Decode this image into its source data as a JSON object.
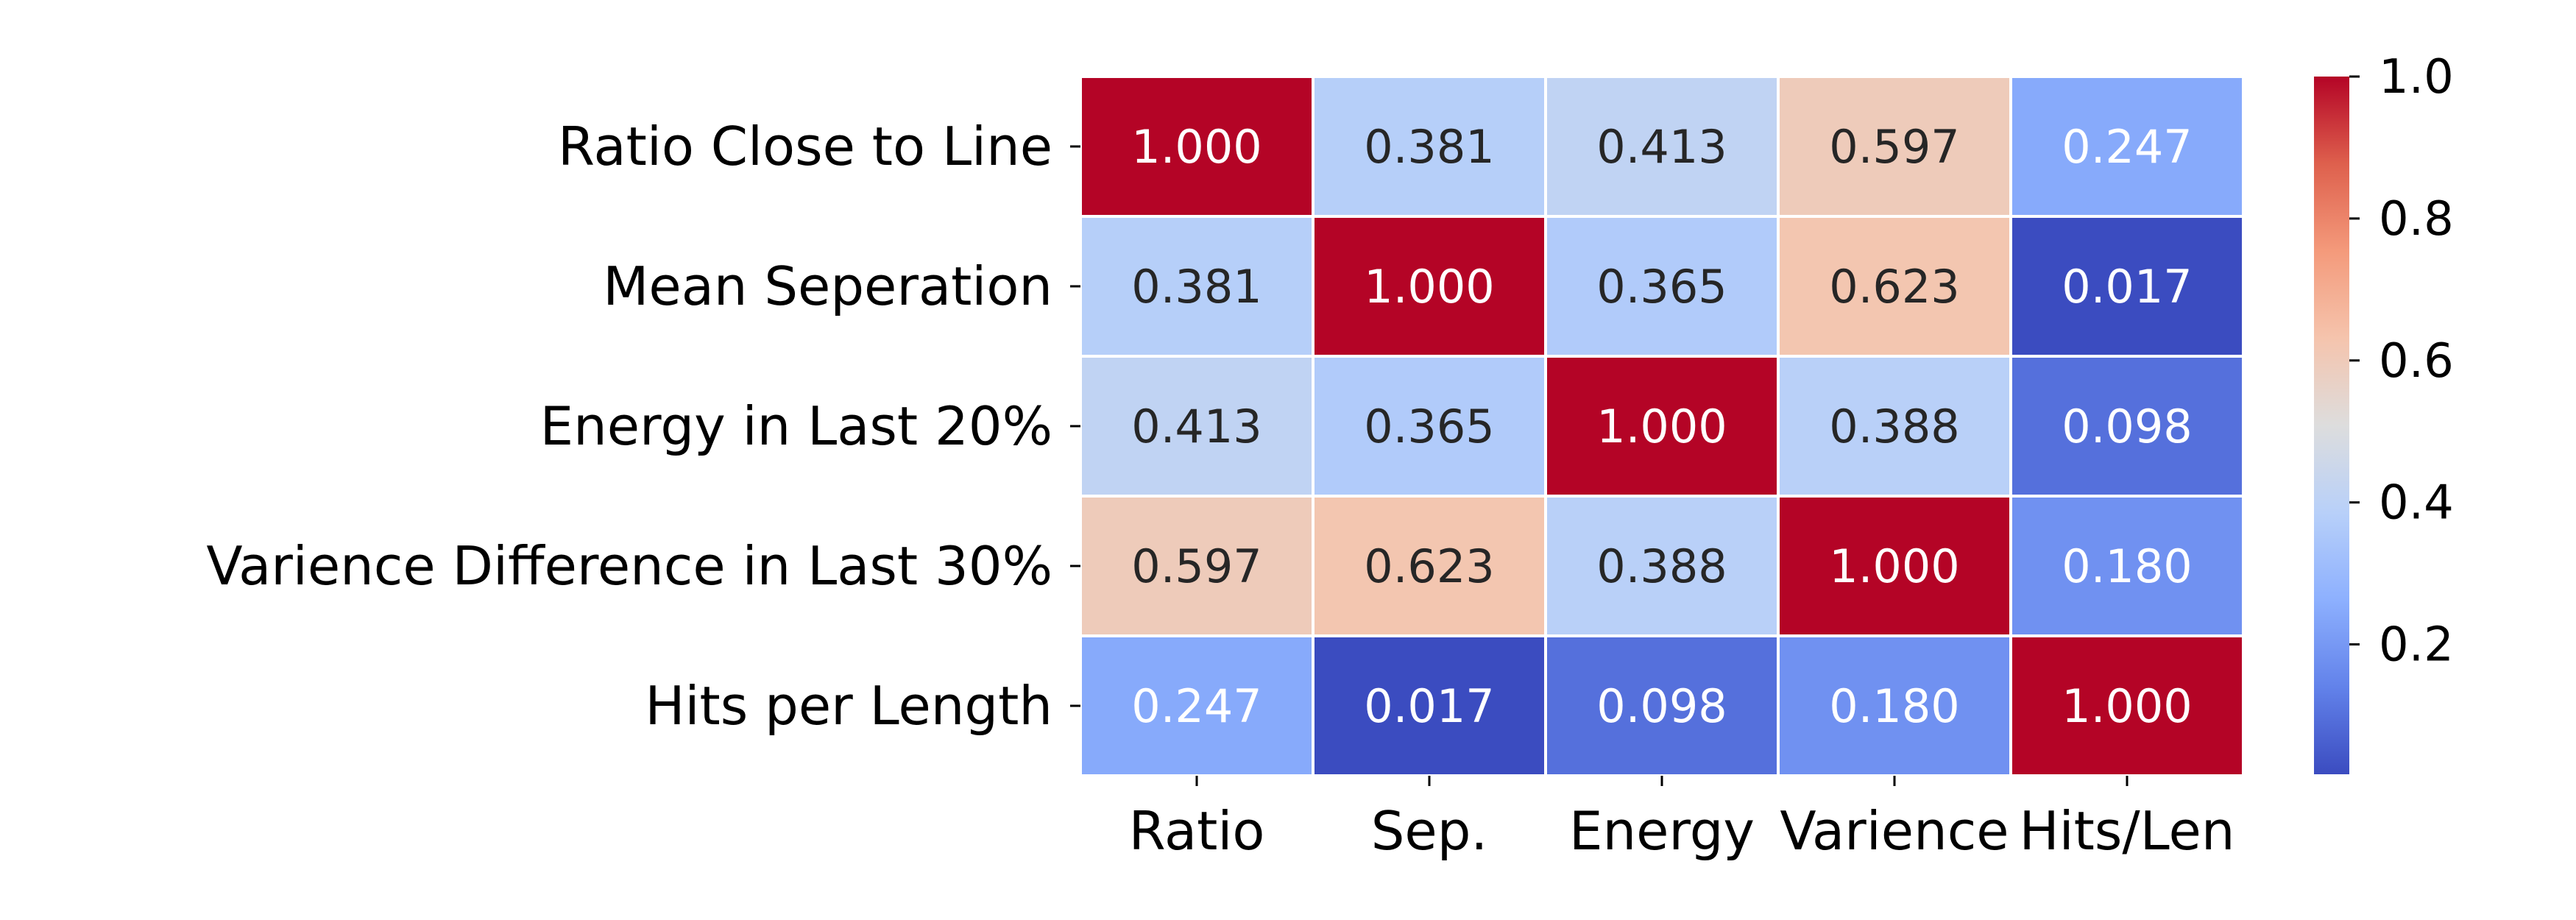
{
  "chart_data": {
    "type": "heatmap",
    "title": "",
    "xlabel": "",
    "ylabel": "",
    "row_labels": [
      "Ratio Close to Line",
      "Mean Seperation",
      "Energy in Last 20%",
      "Varience Difference in Last 30%",
      "Hits per Length"
    ],
    "col_labels": [
      "Ratio",
      "Sep.",
      "Energy",
      "Varience",
      "Hits/Len"
    ],
    "values": [
      [
        1.0,
        0.381,
        0.413,
        0.597,
        0.247
      ],
      [
        0.381,
        1.0,
        0.365,
        0.623,
        0.017
      ],
      [
        0.413,
        0.365,
        1.0,
        0.388,
        0.098
      ],
      [
        0.597,
        0.623,
        0.388,
        1.0,
        0.18
      ],
      [
        0.247,
        0.017,
        0.098,
        0.18,
        1.0
      ]
    ],
    "value_format": "0.000",
    "colormap": "coolwarm",
    "colorbar": {
      "range": [
        0.017,
        1.0
      ],
      "ticks": [
        0.2,
        0.4,
        0.6,
        0.8,
        1.0
      ],
      "tick_labels": [
        "0.2",
        "0.4",
        "0.6",
        "0.8",
        "1.0"
      ],
      "placement": "right"
    },
    "grid_line_color": "#ffffff",
    "text_color_dark": "#262626",
    "text_color_light": "#ffffff"
  }
}
